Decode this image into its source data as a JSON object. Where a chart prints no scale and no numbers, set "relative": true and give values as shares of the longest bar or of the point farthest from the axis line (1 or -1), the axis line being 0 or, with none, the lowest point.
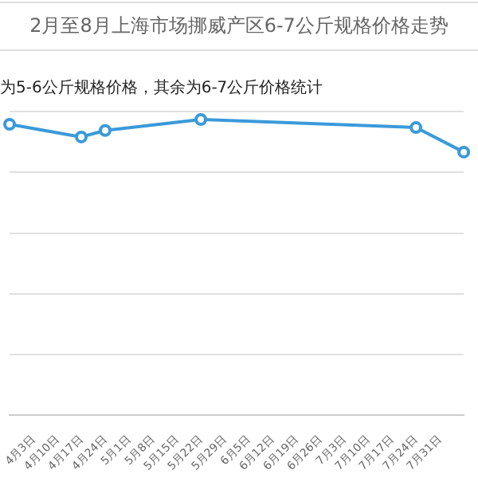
{
  "chart_data": {
    "type": "line",
    "title": "2月至8月上海市场挪威产区6-7公斤规格价格走势",
    "subtitle": "为5-6公斤规格价格，其余为6-7公斤价格统计",
    "relative": true,
    "categories": [
      null,
      "4月3日",
      "4月10日",
      "4月17日",
      "4月24日",
      "5月1日",
      "5月8日",
      "5月15日",
      "5月22日",
      "5月29日",
      "6月5日",
      "6月12日",
      "6月19日",
      "6月26日",
      "7月3日",
      "7月10日",
      "7月17日",
      "7月24日",
      "7月31日",
      null
    ],
    "series": [
      {
        "color": "#3a9ad9",
        "values": [
          0.984,
          null,
          null,
          0.941,
          0.963,
          null,
          null,
          null,
          1,
          null,
          null,
          null,
          null,
          null,
          null,
          null,
          null,
          0.973,
          null,
          0.89
        ]
      }
    ],
    "grid": "y",
    "legend": false,
    "marker": "circle",
    "line_style": "solid",
    "tick_labels": "x"
  }
}
